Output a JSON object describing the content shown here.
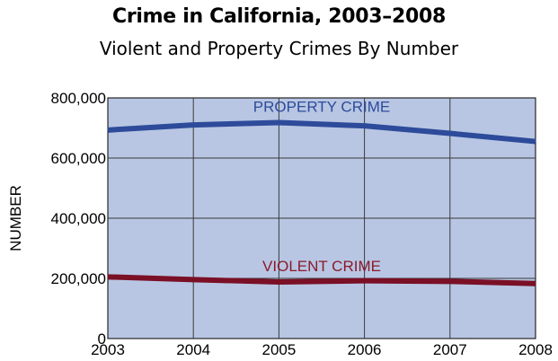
{
  "chart_data": {
    "type": "line",
    "title": "Crime in California,  2003–2008",
    "subtitle": "Violent and Property Crimes By Number",
    "xlabel": "",
    "ylabel": "NUMBER",
    "x": [
      2003,
      2004,
      2005,
      2006,
      2007,
      2008
    ],
    "x_tick_labels": [
      "2003",
      "2004",
      "2005",
      "2006",
      "2007",
      "2008"
    ],
    "ylim": [
      0,
      800000
    ],
    "y_ticks": [
      0,
      200000,
      400000,
      600000,
      800000
    ],
    "y_tick_labels": [
      "0",
      "200,000",
      "400,000",
      "600,000",
      "800,000"
    ],
    "grid": true,
    "plot_background": "#b8c6e3",
    "series": [
      {
        "name": "PROPERTY CRIME",
        "color": "#2d4b9a",
        "label_color": "#2d4b9a",
        "values": [
          693000,
          710000,
          718000,
          707000,
          682000,
          655000
        ]
      },
      {
        "name": "VIOLENT CRIME",
        "color": "#7a0f25",
        "label_color": "#8a1a2a",
        "values": [
          205000,
          196000,
          188000,
          192000,
          190000,
          183000
        ]
      }
    ]
  }
}
